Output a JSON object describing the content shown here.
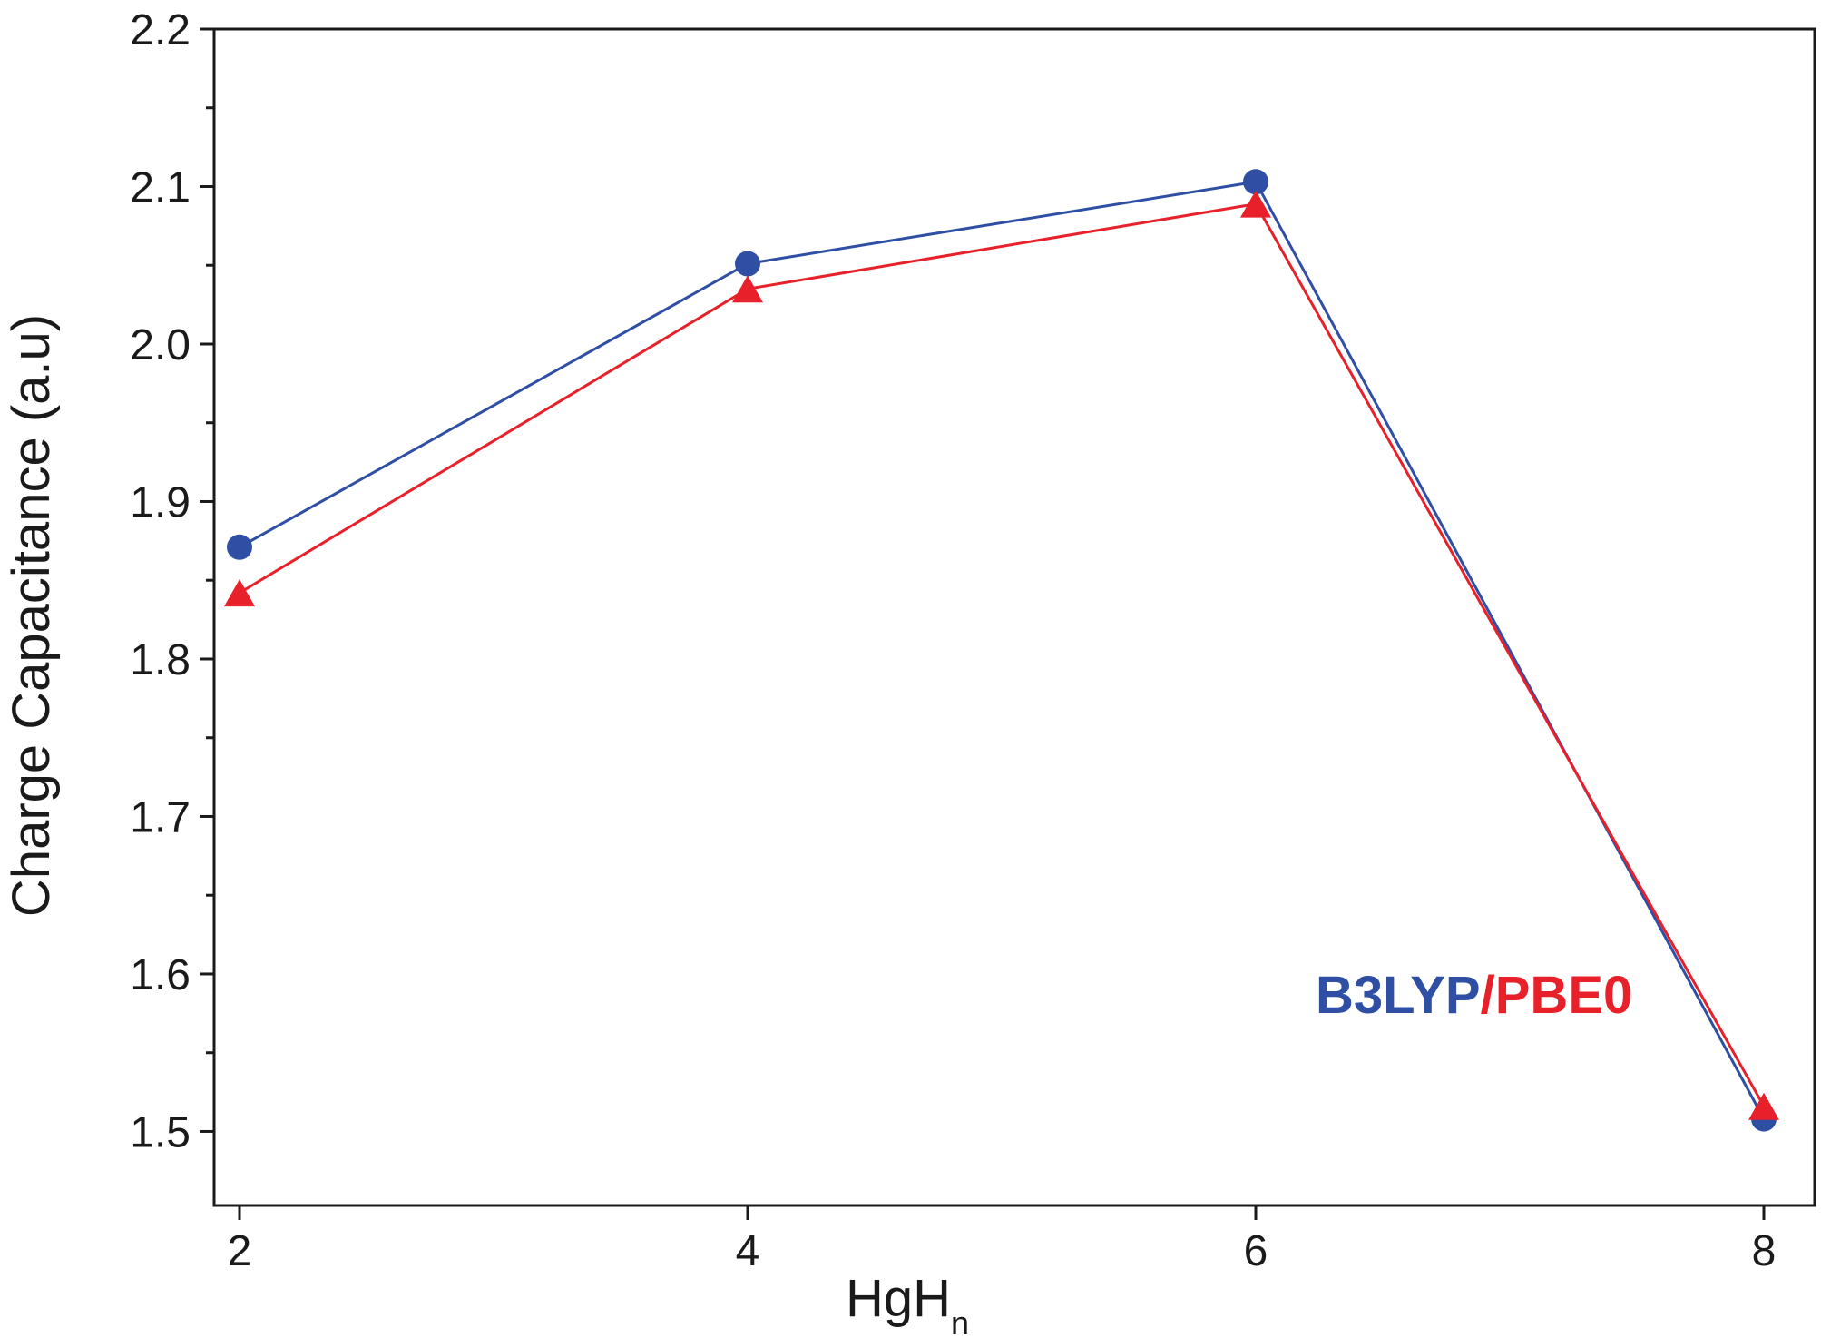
{
  "chart_data": {
    "type": "line",
    "x": [
      2,
      4,
      6,
      8
    ],
    "xticks": [
      "2",
      "4",
      "6",
      "8"
    ],
    "yticks": [
      "1.5",
      "1.6",
      "1.7",
      "1.8",
      "1.9",
      "2.0",
      "2.1",
      "2.2"
    ],
    "xlim": [
      1.9,
      8.2
    ],
    "ylim": [
      1.453,
      2.2
    ],
    "xlabel": {
      "main": "HgH",
      "sub": "n"
    },
    "ylabel": "Charge Capacitance (a.u)",
    "grid": false,
    "series": [
      {
        "name": "B3LYP",
        "marker": "circle",
        "color": "#2e4fa3",
        "values": [
          1.871,
          2.051,
          2.103,
          1.508
        ]
      },
      {
        "name": "PBE0",
        "marker": "triangle",
        "color": "#e8202a",
        "values": [
          1.842,
          2.035,
          2.089,
          1.516
        ]
      }
    ],
    "legend": {
      "placement": "inside-right",
      "parts": [
        {
          "text": "B3LYP",
          "color": "#2e4fa3"
        },
        {
          "text": "/",
          "color": "#e8202a"
        },
        {
          "text": "PBE0",
          "color": "#e8202a"
        }
      ]
    }
  }
}
